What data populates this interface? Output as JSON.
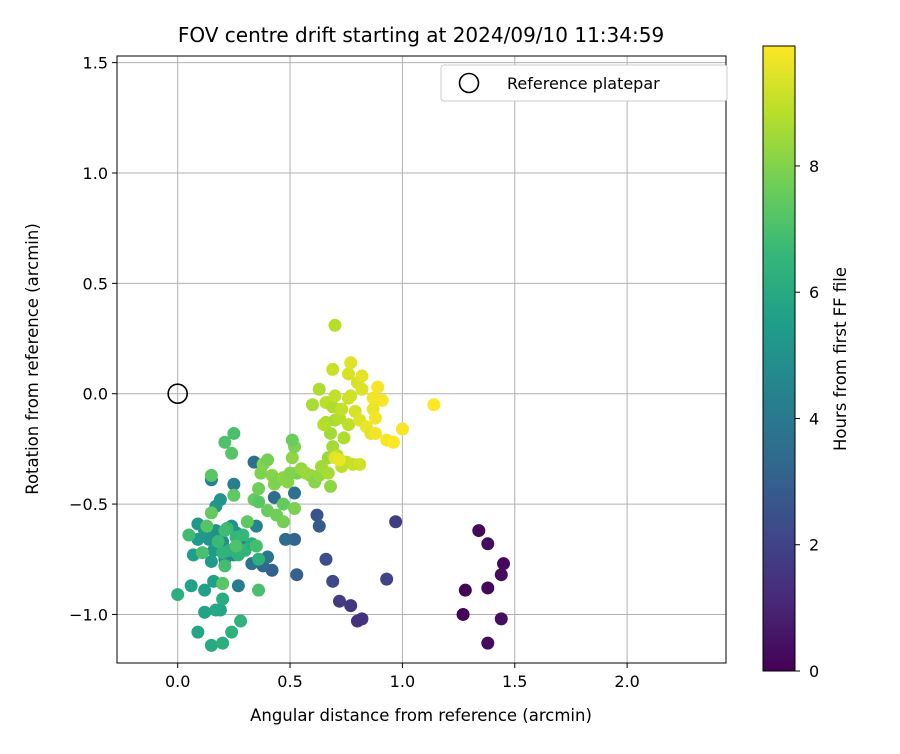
{
  "chart_data": {
    "type": "scatter",
    "title": "FOV centre drift starting at 2024/09/10 11:34:59",
    "xlabel": "Angular distance from reference (arcmin)",
    "ylabel": "Rotation from reference (arcmin)",
    "xlim": [
      -0.27,
      2.44
    ],
    "ylim": [
      -1.22,
      1.53
    ],
    "xticks": [
      0.0,
      0.5,
      1.0,
      1.5,
      2.0
    ],
    "xtick_labels": [
      "0.0",
      "0.5",
      "1.0",
      "1.5",
      "2.0"
    ],
    "yticks": [
      -1.0,
      -0.5,
      0.0,
      0.5,
      1.0,
      1.5
    ],
    "ytick_labels": [
      "−1.0",
      "−0.5",
      "0.0",
      "0.5",
      "1.0",
      "1.5"
    ],
    "grid": true,
    "legend": {
      "placement": "top-right",
      "entries": [
        "Reference platepar"
      ]
    },
    "reference_point": {
      "x": 0.0,
      "y": 0.0,
      "label": "Reference platepar"
    },
    "colorbar": {
      "label": "Hours from first FF file",
      "range": [
        0,
        9.9
      ],
      "ticks": [
        0,
        2,
        4,
        6,
        8
      ],
      "tick_labels": [
        "0",
        "2",
        "4",
        "6",
        "8"
      ],
      "colormap": "viridis",
      "stops": [
        "#440154",
        "#482878",
        "#3e4989",
        "#31688e",
        "#26828e",
        "#1f9e89",
        "#35b779",
        "#6ece58",
        "#b5de2b",
        "#fde725"
      ]
    },
    "points": [
      {
        "x": 1.34,
        "y": -0.62,
        "h": 0.2
      },
      {
        "x": 1.28,
        "y": -0.89,
        "h": 0.1
      },
      {
        "x": 1.38,
        "y": -0.68,
        "h": 0.3
      },
      {
        "x": 1.45,
        "y": -0.77,
        "h": 0.2
      },
      {
        "x": 1.44,
        "y": -0.82,
        "h": 0.3
      },
      {
        "x": 1.38,
        "y": -0.88,
        "h": 0.2
      },
      {
        "x": 1.27,
        "y": -1.0,
        "h": 0.1
      },
      {
        "x": 1.44,
        "y": -1.02,
        "h": 0.4
      },
      {
        "x": 1.38,
        "y": -1.13,
        "h": 0.3
      },
      {
        "x": 0.97,
        "y": -0.58,
        "h": 1.8
      },
      {
        "x": 0.93,
        "y": -0.84,
        "h": 2.0
      },
      {
        "x": 0.82,
        "y": -1.02,
        "h": 1.5
      },
      {
        "x": 0.8,
        "y": -1.03,
        "h": 1.4
      },
      {
        "x": 0.77,
        "y": -0.96,
        "h": 1.6
      },
      {
        "x": 0.72,
        "y": -0.94,
        "h": 1.7
      },
      {
        "x": 0.69,
        "y": -0.85,
        "h": 2.2
      },
      {
        "x": 0.66,
        "y": -0.75,
        "h": 2.4
      },
      {
        "x": 0.62,
        "y": -0.55,
        "h": 2.6
      },
      {
        "x": 0.63,
        "y": -0.6,
        "h": 2.8
      },
      {
        "x": 0.53,
        "y": -0.82,
        "h": 3.1
      },
      {
        "x": 0.42,
        "y": -0.8,
        "h": 3.0
      },
      {
        "x": 0.52,
        "y": -0.66,
        "h": 3.2
      },
      {
        "x": 0.48,
        "y": -0.66,
        "h": 3.4
      },
      {
        "x": 0.43,
        "y": -0.47,
        "h": 3.5
      },
      {
        "x": 0.52,
        "y": -0.45,
        "h": 3.7
      },
      {
        "x": 0.34,
        "y": -0.31,
        "h": 3.6
      },
      {
        "x": 0.38,
        "y": -0.78,
        "h": 3.3
      },
      {
        "x": 0.33,
        "y": -0.77,
        "h": 3.8
      },
      {
        "x": 0.4,
        "y": -0.74,
        "h": 3.9
      },
      {
        "x": 0.27,
        "y": -0.87,
        "h": 4.1
      },
      {
        "x": 0.15,
        "y": -0.39,
        "h": 4.3
      },
      {
        "x": 0.25,
        "y": -0.41,
        "h": 4.2
      },
      {
        "x": 0.35,
        "y": -0.6,
        "h": 4.4
      },
      {
        "x": 0.29,
        "y": -0.69,
        "h": 4.5
      },
      {
        "x": 0.25,
        "y": -0.73,
        "h": 4.6
      },
      {
        "x": 0.21,
        "y": -0.75,
        "h": 4.7
      },
      {
        "x": 0.2,
        "y": -0.67,
        "h": 4.8
      },
      {
        "x": 0.26,
        "y": -0.63,
        "h": 4.9
      },
      {
        "x": 0.24,
        "y": -0.6,
        "h": 5.0
      },
      {
        "x": 0.19,
        "y": -0.48,
        "h": 5.1
      },
      {
        "x": 0.17,
        "y": -0.51,
        "h": 5.2
      },
      {
        "x": 0.17,
        "y": -0.62,
        "h": 5.0
      },
      {
        "x": 0.14,
        "y": -0.66,
        "h": 5.1
      },
      {
        "x": 0.16,
        "y": -0.71,
        "h": 5.3
      },
      {
        "x": 0.12,
        "y": -0.62,
        "h": 5.2
      },
      {
        "x": 0.09,
        "y": -0.59,
        "h": 5.3
      },
      {
        "x": 0.09,
        "y": -0.66,
        "h": 5.4
      },
      {
        "x": 0.07,
        "y": -0.73,
        "h": 5.5
      },
      {
        "x": 0.15,
        "y": -0.76,
        "h": 5.4
      },
      {
        "x": 0.16,
        "y": -0.85,
        "h": 5.6
      },
      {
        "x": 0.2,
        "y": -0.86,
        "h": 5.5
      },
      {
        "x": 0.06,
        "y": -0.87,
        "h": 5.7
      },
      {
        "x": 0.12,
        "y": -0.89,
        "h": 5.6
      },
      {
        "x": 0.19,
        "y": -0.98,
        "h": 5.8
      },
      {
        "x": 0.17,
        "y": -0.98,
        "h": 5.9
      },
      {
        "x": 0.12,
        "y": -0.99,
        "h": 5.7
      },
      {
        "x": 0.09,
        "y": -1.08,
        "h": 5.8
      },
      {
        "x": 0.15,
        "y": -1.14,
        "h": 6.0
      },
      {
        "x": 0.2,
        "y": -1.13,
        "h": 6.2
      },
      {
        "x": 0.24,
        "y": -1.08,
        "h": 6.3
      },
      {
        "x": 0.28,
        "y": -1.03,
        "h": 6.4
      },
      {
        "x": 0.2,
        "y": -0.93,
        "h": 6.1
      },
      {
        "x": 0.0,
        "y": -0.91,
        "h": 6.2
      },
      {
        "x": 0.23,
        "y": -0.71,
        "h": 6.3
      },
      {
        "x": 0.27,
        "y": -0.73,
        "h": 6.4
      },
      {
        "x": 0.3,
        "y": -0.71,
        "h": 6.5
      },
      {
        "x": 0.33,
        "y": -0.68,
        "h": 6.2
      },
      {
        "x": 0.22,
        "y": -0.61,
        "h": 6.6
      },
      {
        "x": 0.26,
        "y": -0.65,
        "h": 6.5
      },
      {
        "x": 0.2,
        "y": -0.72,
        "h": 6.4
      },
      {
        "x": 0.18,
        "y": -0.67,
        "h": 6.7
      },
      {
        "x": 0.21,
        "y": -0.62,
        "h": 6.8
      },
      {
        "x": 0.29,
        "y": -0.64,
        "h": 6.6
      },
      {
        "x": 0.35,
        "y": -0.69,
        "h": 6.9
      },
      {
        "x": 0.36,
        "y": -0.75,
        "h": 6.3
      },
      {
        "x": 0.36,
        "y": -0.89,
        "h": 7.0
      },
      {
        "x": 0.21,
        "y": -0.78,
        "h": 6.9
      },
      {
        "x": 0.26,
        "y": -0.69,
        "h": 7.1
      },
      {
        "x": 0.13,
        "y": -0.6,
        "h": 7.2
      },
      {
        "x": 0.05,
        "y": -0.64,
        "h": 6.8
      },
      {
        "x": 0.11,
        "y": -0.72,
        "h": 7.0
      },
      {
        "x": 0.2,
        "y": -0.86,
        "h": 7.3
      },
      {
        "x": 0.25,
        "y": -0.46,
        "h": 7.4
      },
      {
        "x": 0.15,
        "y": -0.54,
        "h": 7.5
      },
      {
        "x": 0.15,
        "y": -0.37,
        "h": 7.3
      },
      {
        "x": 0.21,
        "y": -0.22,
        "h": 7.1
      },
      {
        "x": 0.25,
        "y": -0.18,
        "h": 7.0
      },
      {
        "x": 0.24,
        "y": -0.27,
        "h": 7.2
      },
      {
        "x": 0.31,
        "y": -0.58,
        "h": 7.4
      },
      {
        "x": 0.34,
        "y": -0.48,
        "h": 7.5
      },
      {
        "x": 0.36,
        "y": -0.49,
        "h": 7.3
      },
      {
        "x": 0.4,
        "y": -0.53,
        "h": 7.6
      },
      {
        "x": 0.44,
        "y": -0.55,
        "h": 7.7
      },
      {
        "x": 0.47,
        "y": -0.5,
        "h": 7.5
      },
      {
        "x": 0.47,
        "y": -0.58,
        "h": 7.8
      },
      {
        "x": 0.52,
        "y": -0.52,
        "h": 7.9
      },
      {
        "x": 0.53,
        "y": -0.36,
        "h": 7.8
      },
      {
        "x": 0.36,
        "y": -0.43,
        "h": 7.7
      },
      {
        "x": 0.37,
        "y": -0.36,
        "h": 7.9
      },
      {
        "x": 0.38,
        "y": -0.32,
        "h": 8.0
      },
      {
        "x": 0.4,
        "y": -0.3,
        "h": 7.8
      },
      {
        "x": 0.42,
        "y": -0.37,
        "h": 8.1
      },
      {
        "x": 0.43,
        "y": -0.41,
        "h": 8.0
      },
      {
        "x": 0.45,
        "y": -0.39,
        "h": 7.9
      },
      {
        "x": 0.47,
        "y": -0.38,
        "h": 8.2
      },
      {
        "x": 0.49,
        "y": -0.4,
        "h": 8.1
      },
      {
        "x": 0.5,
        "y": -0.36,
        "h": 8.0
      },
      {
        "x": 0.51,
        "y": -0.29,
        "h": 8.2
      },
      {
        "x": 0.52,
        "y": -0.24,
        "h": 7.9
      },
      {
        "x": 0.51,
        "y": -0.21,
        "h": 7.6
      },
      {
        "x": 0.55,
        "y": -0.34,
        "h": 8.3
      },
      {
        "x": 0.59,
        "y": -0.37,
        "h": 8.2
      },
      {
        "x": 0.61,
        "y": -0.4,
        "h": 8.1
      },
      {
        "x": 0.57,
        "y": -0.36,
        "h": 8.4
      },
      {
        "x": 0.63,
        "y": -0.37,
        "h": 8.3
      },
      {
        "x": 0.64,
        "y": -0.33,
        "h": 8.5
      },
      {
        "x": 0.67,
        "y": -0.29,
        "h": 8.4
      },
      {
        "x": 0.67,
        "y": -0.36,
        "h": 8.6
      },
      {
        "x": 0.68,
        "y": -0.42,
        "h": 8.2
      },
      {
        "x": 0.68,
        "y": -0.18,
        "h": 8.5
      },
      {
        "x": 0.66,
        "y": -0.13,
        "h": 8.7
      },
      {
        "x": 0.7,
        "y": -0.12,
        "h": 8.6
      },
      {
        "x": 0.72,
        "y": -0.11,
        "h": 8.8
      },
      {
        "x": 0.74,
        "y": -0.2,
        "h": 8.7
      },
      {
        "x": 0.76,
        "y": -0.14,
        "h": 8.9
      },
      {
        "x": 0.69,
        "y": -0.24,
        "h": 8.5
      },
      {
        "x": 0.71,
        "y": -0.28,
        "h": 8.8
      },
      {
        "x": 0.73,
        "y": -0.33,
        "h": 8.9
      },
      {
        "x": 0.75,
        "y": -0.31,
        "h": 9.0
      },
      {
        "x": 0.78,
        "y": -0.32,
        "h": 9.1
      },
      {
        "x": 0.81,
        "y": -0.32,
        "h": 9.2
      },
      {
        "x": 0.7,
        "y": -0.29,
        "h": 9.5
      },
      {
        "x": 0.72,
        "y": -0.3,
        "h": 9.6
      },
      {
        "x": 0.6,
        "y": -0.05,
        "h": 8.6
      },
      {
        "x": 0.63,
        "y": 0.02,
        "h": 8.7
      },
      {
        "x": 0.65,
        "y": -0.14,
        "h": 8.8
      },
      {
        "x": 0.66,
        "y": -0.04,
        "h": 8.9
      },
      {
        "x": 0.69,
        "y": -0.06,
        "h": 8.7
      },
      {
        "x": 0.7,
        "y": -0.01,
        "h": 9.0
      },
      {
        "x": 0.69,
        "y": 0.11,
        "h": 9.1
      },
      {
        "x": 0.7,
        "y": 0.31,
        "h": 8.8
      },
      {
        "x": 0.73,
        "y": -0.07,
        "h": 9.0
      },
      {
        "x": 0.76,
        "y": -0.02,
        "h": 9.1
      },
      {
        "x": 0.77,
        "y": -0.01,
        "h": 9.2
      },
      {
        "x": 0.76,
        "y": 0.09,
        "h": 9.3
      },
      {
        "x": 0.77,
        "y": 0.14,
        "h": 9.4
      },
      {
        "x": 0.8,
        "y": 0.05,
        "h": 9.3
      },
      {
        "x": 0.82,
        "y": 0.02,
        "h": 9.4
      },
      {
        "x": 0.82,
        "y": 0.08,
        "h": 9.5
      },
      {
        "x": 0.79,
        "y": -0.08,
        "h": 9.3
      },
      {
        "x": 0.81,
        "y": -0.12,
        "h": 9.4
      },
      {
        "x": 0.84,
        "y": -0.15,
        "h": 9.6
      },
      {
        "x": 0.86,
        "y": -0.18,
        "h": 9.5
      },
      {
        "x": 0.87,
        "y": -0.07,
        "h": 9.6
      },
      {
        "x": 0.88,
        "y": -0.11,
        "h": 9.7
      },
      {
        "x": 0.87,
        "y": -0.02,
        "h": 9.7
      },
      {
        "x": 0.89,
        "y": 0.03,
        "h": 9.8
      },
      {
        "x": 0.91,
        "y": -0.03,
        "h": 9.8
      },
      {
        "x": 0.88,
        "y": -0.18,
        "h": 9.7
      },
      {
        "x": 0.93,
        "y": -0.21,
        "h": 9.8
      },
      {
        "x": 0.96,
        "y": -0.22,
        "h": 9.9
      },
      {
        "x": 1.0,
        "y": -0.16,
        "h": 9.8
      },
      {
        "x": 1.14,
        "y": -0.05,
        "h": 9.9
      }
    ]
  }
}
